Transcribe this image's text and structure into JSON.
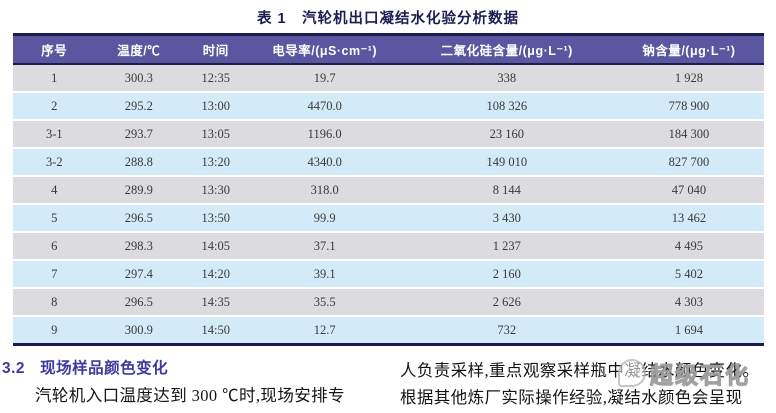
{
  "document": {
    "table_title": "表 1　汽轮机出口凝结水化验分析数据"
  },
  "table": {
    "columns": [
      "序号",
      "温度/℃",
      "时间",
      "电导率/(μS·cm⁻¹)",
      "二氧化硅含量/(μg·L⁻¹)",
      "钠含量/(μg·L⁻¹)"
    ],
    "rows": [
      [
        "1",
        "300.3",
        "12:35",
        "19.7",
        "338",
        "1 928"
      ],
      [
        "2",
        "295.2",
        "13:00",
        "4470.0",
        "108 326",
        "778 900"
      ],
      [
        "3-1",
        "293.7",
        "13:05",
        "1196.0",
        "23 160",
        "184 300"
      ],
      [
        "3-2",
        "288.8",
        "13:20",
        "4340.0",
        "149 010",
        "827 700"
      ],
      [
        "4",
        "289.9",
        "13:30",
        "318.0",
        "8 144",
        "47 040"
      ],
      [
        "5",
        "296.5",
        "13:50",
        "99.9",
        "3 430",
        "13 462"
      ],
      [
        "6",
        "298.3",
        "14:05",
        "37.1",
        "1 237",
        "4 495"
      ],
      [
        "7",
        "297.4",
        "14:20",
        "39.1",
        "2 160",
        "5 402"
      ],
      [
        "8",
        "296.5",
        "14:35",
        "35.5",
        "2 626",
        "4 303"
      ],
      [
        "9",
        "300.9",
        "14:50",
        "12.7",
        "732",
        "1 694"
      ]
    ],
    "colors": {
      "header_bg": "#5a56a0",
      "header_text": "#ffffff",
      "border_dark": "#1e1b50",
      "row_gray": "#dcdce0",
      "row_blue": "#d3eaf8",
      "title_color": "#1d1d55"
    }
  },
  "section": {
    "number": "3.2",
    "heading": "现场样品颜色变化",
    "accent_color": "#3c3a9e",
    "left_line": "汽轮机入口温度达到 300 ℃时,现场安排专",
    "right_line1": "人负责采样,重点观察采样瓶中凝结水颜色变化。",
    "right_line2": "根据其他炼厂实际操作经验,凝结水颜色会呈现"
  },
  "watermark": {
    "text": "超级石化"
  }
}
